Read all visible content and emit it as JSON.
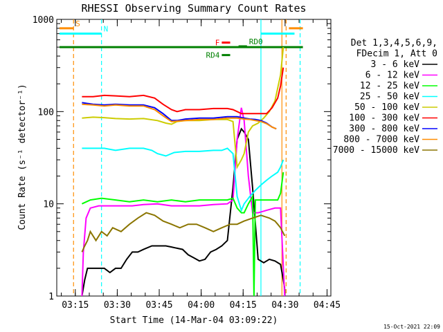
{
  "chart_data": {
    "type": "line",
    "title": "RHESSI Observing Summary Count Rates",
    "xlabel": "Start Time (14-Mar-04 03:09:22)",
    "ylabel": "Count Rate (s⁻¹ detector⁻¹)",
    "y_scale": "log",
    "ylim": [
      1,
      1000
    ],
    "y_ticks": [
      "1",
      "10",
      "100",
      "1000"
    ],
    "x_unit": "minutes after 03:09:22",
    "x_tick_labels": [
      "03:15",
      "03:30",
      "03:45",
      "04:00",
      "04:15",
      "04:30",
      "04:45"
    ],
    "grid": false,
    "legend_position": "right",
    "legend_header": [
      "Det 1,3,4,5,6,9,",
      "FDecim 1, Att 0"
    ],
    "series": [
      {
        "name": "3 - 6 keV",
        "color": "#000000",
        "x": [
          8,
          9,
          10,
          11,
          14,
          16,
          18,
          20,
          22,
          24,
          26,
          28,
          30,
          33,
          36,
          38,
          40,
          42,
          44,
          46,
          48,
          50,
          52,
          54,
          56,
          58,
          60,
          62,
          63.5,
          65,
          66,
          67.5,
          69,
          71,
          73,
          75,
          77,
          79,
          80,
          80.5
        ],
        "y": [
          1,
          1.5,
          2,
          2,
          2,
          2,
          1.8,
          2,
          2,
          2.5,
          3,
          3,
          3.2,
          3.5,
          3.5,
          3.5,
          3.4,
          3.3,
          3.2,
          2.8,
          2.6,
          2.4,
          2.5,
          3,
          3.2,
          3.5,
          4,
          15,
          50,
          65,
          60,
          50,
          15,
          2.5,
          2.3,
          2.5,
          2.4,
          2.2,
          1.5,
          1.2
        ]
      },
      {
        "name": "6 - 12 keV",
        "color": "#ff00ff",
        "x": [
          8,
          8.5,
          9.5,
          11,
          14,
          18,
          22,
          26,
          30,
          35,
          40,
          45,
          50,
          55,
          60,
          62,
          63.5,
          65,
          66,
          67.5,
          69,
          71,
          74,
          77,
          79,
          80.5
        ],
        "y": [
          1,
          3,
          7,
          9,
          9.5,
          9.5,
          9.5,
          9.5,
          9.8,
          10,
          9.5,
          9.5,
          9.5,
          9.8,
          10,
          11,
          50,
          110,
          80,
          20,
          8,
          8,
          8.5,
          9,
          9,
          1
        ]
      },
      {
        "name": "12 - 25 keV",
        "color": "#00ff00",
        "x": [
          8,
          11,
          15,
          20,
          25,
          30,
          35,
          40,
          45,
          50,
          55,
          60,
          62,
          63.5,
          65,
          66,
          67.5,
          69,
          69.5,
          70,
          73,
          76,
          78,
          79,
          80
        ],
        "y": [
          10,
          11,
          11.5,
          11,
          10.5,
          11,
          10.5,
          11,
          10.5,
          11,
          11,
          11,
          11.5,
          9,
          8,
          8,
          10,
          12,
          1,
          11,
          11,
          11,
          11,
          13,
          22
        ]
      },
      {
        "name": "25 - 50 keV",
        "color": "#00ffff",
        "x": [
          8,
          12,
          16,
          20,
          25,
          30,
          33,
          35,
          38,
          41,
          45,
          50,
          55,
          58,
          60,
          62,
          63.5,
          65,
          66,
          68,
          70,
          72,
          74,
          76,
          78,
          79,
          80
        ],
        "y": [
          40,
          40,
          40,
          38,
          40,
          40,
          38,
          35,
          33,
          36,
          37,
          37,
          38,
          38,
          40,
          35,
          12,
          8.5,
          10,
          12,
          14,
          16,
          18,
          20,
          22,
          25,
          30
        ]
      },
      {
        "name": "50 - 100 keV",
        "color": "#cccc00",
        "x": [
          8,
          12,
          16,
          20,
          25,
          30,
          35,
          38,
          40,
          42,
          45,
          50,
          55,
          60,
          62,
          63.5,
          65,
          66,
          67.5,
          69,
          71,
          73,
          75,
          77,
          78,
          79,
          80
        ],
        "y": [
          85,
          87,
          86,
          84,
          83,
          84,
          80,
          75,
          73,
          78,
          80,
          80,
          82,
          82,
          78,
          25,
          30,
          35,
          60,
          70,
          75,
          85,
          100,
          130,
          180,
          250,
          500
        ]
      },
      {
        "name": "100 - 300 keV",
        "color": "#ff0000",
        "x": [
          8,
          12,
          16,
          20,
          25,
          30,
          34,
          37,
          40,
          42,
          45,
          50,
          55,
          60,
          62,
          63.5,
          65,
          66,
          68,
          70,
          72,
          74,
          76,
          78,
          79,
          80
        ],
        "y": [
          145,
          145,
          150,
          148,
          145,
          150,
          140,
          120,
          105,
          100,
          105,
          105,
          108,
          108,
          105,
          100,
          95,
          95,
          95,
          95,
          95,
          95,
          110,
          140,
          190,
          300
        ]
      },
      {
        "name": "300 - 800 keV",
        "color": "#0000ff",
        "x": [
          8,
          12,
          16,
          20,
          25,
          30,
          34,
          37,
          40,
          42,
          45,
          50,
          55,
          60,
          63.5,
          66,
          68,
          70,
          72,
          74,
          76,
          77.5
        ],
        "y": [
          125,
          120,
          118,
          120,
          118,
          118,
          110,
          95,
          80,
          80,
          83,
          85,
          85,
          88,
          88,
          85,
          83,
          82,
          80,
          75,
          68,
          65
        ]
      },
      {
        "name": "800 - 7000 keV",
        "color": "#ff8c00",
        "x": [
          8,
          12,
          16,
          20,
          25,
          30,
          34,
          37,
          40,
          45,
          50,
          55,
          60,
          63.5,
          66,
          68,
          70,
          72,
          74,
          76,
          77.5
        ],
        "y": [
          120,
          118,
          115,
          118,
          115,
          115,
          105,
          90,
          78,
          80,
          82,
          82,
          85,
          85,
          83,
          82,
          80,
          78,
          74,
          68,
          65
        ]
      },
      {
        "name": "7000 - 15000 keV",
        "color": "#8b7500",
        "x": [
          8,
          9,
          10,
          11,
          13,
          15,
          17,
          19,
          22,
          25,
          28,
          31,
          34,
          37,
          40,
          43,
          46,
          49,
          52,
          55,
          58,
          61,
          63.5,
          66,
          69,
          72,
          75,
          77,
          78,
          79,
          80.5
        ],
        "y": [
          3,
          3.5,
          4,
          5,
          4,
          5,
          4.5,
          5.5,
          5,
          6,
          7,
          8,
          7.5,
          6.5,
          6,
          5.5,
          6,
          6,
          5.5,
          5,
          5.5,
          6,
          6,
          6.5,
          7,
          7.5,
          7,
          6.5,
          6,
          5.5,
          4.5
        ]
      }
    ],
    "annotations": [
      {
        "label": "S",
        "color": "#ff8c00",
        "x_start": 0,
        "x_end": 5,
        "y": 800
      },
      {
        "label": "N",
        "color": "#00ffff",
        "x_start": 0,
        "x_end": 15,
        "y": 700
      },
      {
        "label": "",
        "color": "#00ffff",
        "x_start": 72,
        "x_end": 84,
        "y": 700
      },
      {
        "label": "",
        "color": "#ff8c00",
        "x_start": 82,
        "x_end": 87,
        "y": 800
      },
      {
        "label": "",
        "color": "#008000",
        "x_start": 0,
        "x_end": 87,
        "y": 500
      },
      {
        "label": "F",
        "color": "#ff0000",
        "x_start": 58,
        "x_end": 61,
        "y": 560
      },
      {
        "label": "RD0",
        "color": "#008000",
        "x_start": 64,
        "x_end": 67,
        "y": 510
      },
      {
        "label": "RD4",
        "color": "#008000",
        "x_start": 58,
        "x_end": 61,
        "y": 410
      }
    ],
    "vertical_markers": [
      {
        "color": "#ff8c00",
        "x": 5,
        "style": "dashed"
      },
      {
        "color": "#00ffff",
        "x": 15,
        "style": "dashed"
      },
      {
        "color": "#00ffff",
        "x": 72,
        "style": "solid"
      },
      {
        "color": "#ff8c00",
        "x": 79.5,
        "style": "solid"
      },
      {
        "color": "#ff8c00",
        "x": 81,
        "style": "dashed"
      },
      {
        "color": "#00ffff",
        "x": 86,
        "style": "dashed"
      }
    ]
  },
  "footer": {
    "date": "15-Oct-2021 22:09"
  }
}
